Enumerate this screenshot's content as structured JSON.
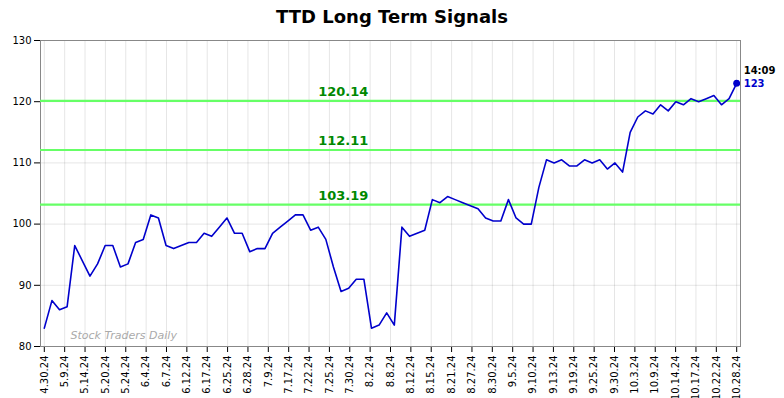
{
  "chart_data": {
    "type": "line",
    "title": "TTD Long Term Signals",
    "x": [
      0,
      1,
      2,
      3,
      4,
      5,
      6,
      7,
      8,
      9,
      10,
      11,
      12,
      13,
      14,
      15,
      16,
      17,
      18,
      19,
      20,
      21,
      22,
      23,
      24,
      25,
      26,
      27,
      28,
      29,
      30,
      31,
      32,
      33,
      34,
      35,
      36,
      37,
      38,
      39,
      40,
      41,
      42,
      43,
      44,
      45,
      46,
      47,
      48,
      49,
      50,
      51,
      52,
      53,
      54,
      55,
      56,
      57,
      58,
      59,
      60,
      61,
      62,
      63,
      64,
      65,
      66,
      67,
      68,
      69,
      70,
      71,
      72,
      73,
      74,
      75,
      76,
      77,
      78,
      79,
      80,
      81,
      82,
      83,
      84,
      85,
      86,
      87,
      88,
      89,
      90,
      91
    ],
    "values": [
      83.0,
      87.5,
      86.0,
      86.5,
      96.5,
      94.0,
      91.5,
      93.5,
      96.5,
      96.5,
      93.0,
      93.5,
      97.0,
      97.5,
      101.5,
      101.0,
      96.5,
      96.0,
      96.5,
      97.0,
      97.0,
      98.5,
      98.0,
      99.5,
      101.0,
      98.5,
      98.5,
      95.5,
      96.0,
      96.0,
      98.5,
      99.5,
      100.5,
      101.5,
      101.5,
      99.0,
      99.5,
      97.5,
      93.0,
      89.0,
      89.5,
      91.0,
      91.0,
      83.0,
      83.5,
      85.5,
      83.5,
      99.5,
      98.0,
      98.5,
      99.0,
      104.0,
      103.5,
      104.5,
      104.0,
      103.5,
      103.0,
      102.5,
      101.0,
      100.5,
      100.5,
      104.0,
      101.0,
      100.0,
      100.0,
      106.0,
      110.5,
      110.0,
      110.5,
      109.5,
      109.5,
      110.5,
      110.0,
      110.5,
      109.0,
      110.0,
      108.5,
      115.0,
      117.5,
      118.5,
      118.0,
      119.5,
      118.5,
      120.0,
      119.5,
      120.5,
      120.0,
      120.5,
      121.0,
      119.5,
      120.5,
      123.0
    ],
    "color": "#0000cc",
    "xlim": [
      -0.5,
      91.5
    ],
    "xticks": [
      {
        "value": 0,
        "label": "4.30.24"
      },
      {
        "value": 2.6765,
        "label": "5.9.24"
      },
      {
        "value": 5.3529,
        "label": "5.14.24"
      },
      {
        "value": 8.0294,
        "label": "5.20.24"
      },
      {
        "value": 10.7059,
        "label": "5.24.24"
      },
      {
        "value": 13.3824,
        "label": "6.4.24"
      },
      {
        "value": 16.0588,
        "label": "6.7.24"
      },
      {
        "value": 18.7353,
        "label": "6.12.24"
      },
      {
        "value": 21.4118,
        "label": "6.17.24"
      },
      {
        "value": 24.0882,
        "label": "6.25.24"
      },
      {
        "value": 26.7647,
        "label": "6.28.24"
      },
      {
        "value": 29.4412,
        "label": "7.9.24"
      },
      {
        "value": 32.1176,
        "label": "7.17.24"
      },
      {
        "value": 34.7941,
        "label": "7.22.24"
      },
      {
        "value": 37.4706,
        "label": "7.25.24"
      },
      {
        "value": 40.1471,
        "label": "7.30.24"
      },
      {
        "value": 42.8235,
        "label": "8.2.24"
      },
      {
        "value": 45.5,
        "label": "8.8.24"
      },
      {
        "value": 48.1765,
        "label": "8.12.24"
      },
      {
        "value": 50.8529,
        "label": "8.15.24"
      },
      {
        "value": 53.5294,
        "label": "8.21.24"
      },
      {
        "value": 56.2059,
        "label": "8.27.24"
      },
      {
        "value": 58.8824,
        "label": "8.30.24"
      },
      {
        "value": 61.5588,
        "label": "9.5.24"
      },
      {
        "value": 64.2353,
        "label": "9.10.24"
      },
      {
        "value": 66.9118,
        "label": "9.13.24"
      },
      {
        "value": 69.5882,
        "label": "9.19.24"
      },
      {
        "value": 72.2647,
        "label": "9.25.24"
      },
      {
        "value": 74.9412,
        "label": "9.30.24"
      },
      {
        "value": 77.6176,
        "label": "10.3.24"
      },
      {
        "value": 80.2941,
        "label": "10.9.24"
      },
      {
        "value": 82.9706,
        "label": "10.14.24"
      },
      {
        "value": 85.6471,
        "label": "10.17.24"
      },
      {
        "value": 88.3235,
        "label": "10.22.24"
      },
      {
        "value": 91,
        "label": "10.28.24"
      }
    ],
    "ylim": [
      80,
      130
    ],
    "yticks": [
      80,
      90,
      100,
      110,
      120,
      130
    ],
    "grid": true,
    "hlines": [
      {
        "value": 103.19,
        "label": "103.19",
        "color": "#66ff66"
      },
      {
        "value": 112.11,
        "label": "112.11",
        "color": "#66ff66"
      },
      {
        "value": 120.14,
        "label": "120.14",
        "color": "#66ff66"
      }
    ],
    "last_point": {
      "x": 91,
      "y": 123,
      "label": "14:09",
      "color": "#0000cc"
    },
    "annotations": [
      {
        "text": "Stock Traders Daily"
      }
    ]
  }
}
